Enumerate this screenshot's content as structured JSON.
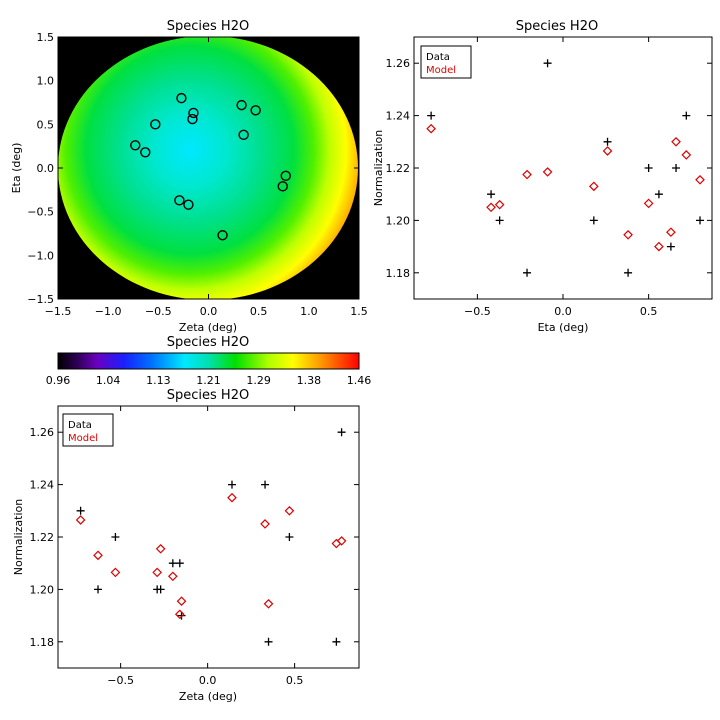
{
  "chart_data": [
    {
      "id": "map",
      "type": "heatmap",
      "title": "Species H2O",
      "xlabel": "Zeta (deg)",
      "ylabel": "Eta (deg)",
      "xlim": [
        -1.5,
        1.5
      ],
      "ylim": [
        -1.5,
        1.5
      ],
      "xticks": [
        -1.5,
        -1.0,
        -0.5,
        0.0,
        0.5,
        1.0,
        1.5
      ],
      "yticks": [
        -1.5,
        -1.0,
        -0.5,
        0.0,
        0.5,
        1.0,
        1.5
      ],
      "xtick_labels": [
        "−1.5",
        "−1.0",
        "−0.5",
        "0.0",
        "0.5",
        "1.0",
        "1.5"
      ],
      "ytick_labels": [
        "−1.5",
        "−1.0",
        "−0.5",
        "0.0",
        "0.5",
        "1.0",
        "1.5"
      ],
      "points": [
        {
          "zeta": -0.73,
          "eta": 0.26
        },
        {
          "zeta": -0.63,
          "eta": 0.18
        },
        {
          "zeta": -0.53,
          "eta": 0.5
        },
        {
          "zeta": -0.27,
          "eta": 0.8
        },
        {
          "zeta": -0.15,
          "eta": 0.63
        },
        {
          "zeta": -0.16,
          "eta": 0.56
        },
        {
          "zeta": 0.33,
          "eta": 0.72
        },
        {
          "zeta": 0.47,
          "eta": 0.66
        },
        {
          "zeta": 0.35,
          "eta": 0.38
        },
        {
          "zeta": -0.29,
          "eta": -0.37
        },
        {
          "zeta": -0.2,
          "eta": -0.42
        },
        {
          "zeta": 0.77,
          "eta": -0.09
        },
        {
          "zeta": 0.74,
          "eta": -0.21
        },
        {
          "zeta": 0.14,
          "eta": -0.77
        }
      ]
    },
    {
      "id": "colorbar",
      "type": "colorbar",
      "title": "Species H2O",
      "range": [
        0.96,
        1.46
      ],
      "tick_labels": [
        "0.96",
        "1.04",
        "1.13",
        "1.21",
        "1.29",
        "1.38",
        "1.46"
      ]
    },
    {
      "id": "eta",
      "type": "scatter",
      "title": "Species H2O",
      "xlabel": "Eta (deg)",
      "ylabel": "Normalization",
      "xlim": [
        -0.87,
        0.87
      ],
      "ylim": [
        1.17,
        1.27
      ],
      "xticks": [
        -0.5,
        0.0,
        0.5
      ],
      "yticks": [
        1.18,
        1.2,
        1.22,
        1.24,
        1.26
      ],
      "xtick_labels": [
        "−0.5",
        "0.0",
        "0.5"
      ],
      "ytick_labels": [
        "1.18",
        "1.20",
        "1.22",
        "1.24",
        "1.26"
      ],
      "legend": [
        "Data",
        "Model"
      ],
      "legend_position": "top-left",
      "series": [
        {
          "name": "Data",
          "marker": "plus",
          "color": "#000000",
          "points": [
            [
              -0.77,
              1.24
            ],
            [
              -0.42,
              1.21
            ],
            [
              -0.37,
              1.2
            ],
            [
              -0.21,
              1.18
            ],
            [
              -0.09,
              1.26
            ],
            [
              0.18,
              1.2
            ],
            [
              0.26,
              1.23
            ],
            [
              0.38,
              1.18
            ],
            [
              0.5,
              1.22
            ],
            [
              0.56,
              1.21
            ],
            [
              0.63,
              1.19
            ],
            [
              0.66,
              1.22
            ],
            [
              0.72,
              1.24
            ],
            [
              0.8,
              1.2
            ]
          ]
        },
        {
          "name": "Model",
          "marker": "diamond",
          "color": "#e00000",
          "points": [
            [
              -0.77,
              1.235
            ],
            [
              -0.42,
              1.205
            ],
            [
              -0.37,
              1.206
            ],
            [
              -0.21,
              1.2175
            ],
            [
              -0.09,
              1.2185
            ],
            [
              0.18,
              1.213
            ],
            [
              0.26,
              1.2265
            ],
            [
              0.38,
              1.1945
            ],
            [
              0.5,
              1.2065
            ],
            [
              0.56,
              1.19
            ],
            [
              0.63,
              1.1955
            ],
            [
              0.66,
              1.23
            ],
            [
              0.72,
              1.225
            ],
            [
              0.8,
              1.2155
            ]
          ]
        }
      ]
    },
    {
      "id": "zeta",
      "type": "scatter",
      "title": "Species H2O",
      "xlabel": "Zeta (deg)",
      "ylabel": "Normalization",
      "xlim": [
        -0.86,
        0.87
      ],
      "ylim": [
        1.17,
        1.27
      ],
      "xticks": [
        -0.5,
        0.0,
        0.5
      ],
      "yticks": [
        1.18,
        1.2,
        1.22,
        1.24,
        1.26
      ],
      "xtick_labels": [
        "−0.5",
        "0.0",
        "0.5"
      ],
      "ytick_labels": [
        "1.18",
        "1.20",
        "1.22",
        "1.24",
        "1.26"
      ],
      "legend": [
        "Data",
        "Model"
      ],
      "legend_position": "top-left",
      "series": [
        {
          "name": "Data",
          "marker": "plus",
          "color": "#000000",
          "points": [
            [
              -0.73,
              1.23
            ],
            [
              -0.63,
              1.2
            ],
            [
              -0.53,
              1.22
            ],
            [
              -0.29,
              1.2
            ],
            [
              -0.27,
              1.2
            ],
            [
              -0.2,
              1.21
            ],
            [
              -0.16,
              1.21
            ],
            [
              -0.15,
              1.19
            ],
            [
              0.14,
              1.24
            ],
            [
              0.33,
              1.24
            ],
            [
              0.35,
              1.18
            ],
            [
              0.47,
              1.22
            ],
            [
              0.74,
              1.18
            ],
            [
              0.77,
              1.26
            ]
          ]
        },
        {
          "name": "Model",
          "marker": "diamond",
          "color": "#e00000",
          "points": [
            [
              -0.73,
              1.2265
            ],
            [
              -0.63,
              1.213
            ],
            [
              -0.53,
              1.2065
            ],
            [
              -0.29,
              1.2065
            ],
            [
              -0.27,
              1.2155
            ],
            [
              -0.2,
              1.205
            ],
            [
              -0.16,
              1.1905
            ],
            [
              -0.15,
              1.1955
            ],
            [
              0.14,
              1.235
            ],
            [
              0.33,
              1.225
            ],
            [
              0.35,
              1.1945
            ],
            [
              0.47,
              1.23
            ],
            [
              0.74,
              1.2175
            ],
            [
              0.77,
              1.2185
            ]
          ]
        }
      ]
    }
  ]
}
